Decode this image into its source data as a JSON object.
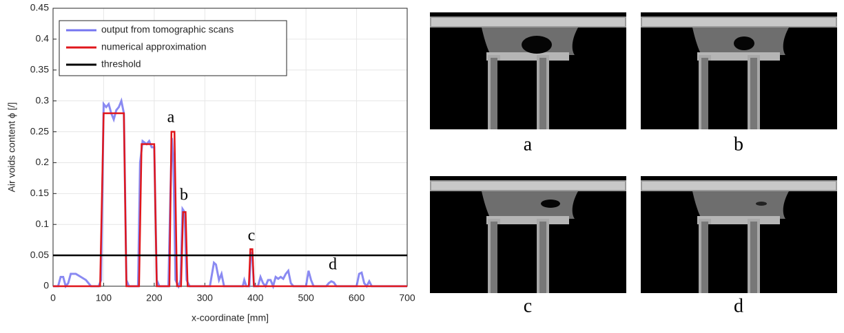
{
  "chart_data": {
    "type": "line",
    "xlabel": "x-coordinate [mm]",
    "ylabel": "Air voids content ϕ [/]",
    "xlim": [
      0,
      700
    ],
    "xticks": [
      0,
      100,
      200,
      300,
      400,
      500,
      600,
      700
    ],
    "ylim": [
      0,
      0.45
    ],
    "yticks": [
      0,
      0.05,
      0.1,
      0.15,
      0.2,
      0.25,
      0.3,
      0.35,
      0.4,
      0.45
    ],
    "grid": true,
    "legend": "upper-left",
    "series": [
      {
        "name": "output from tomographic scans",
        "color": "#7575f0",
        "x": [
          0,
          10,
          15,
          20,
          25,
          30,
          35,
          45,
          55,
          65,
          75,
          90,
          95,
          100,
          105,
          110,
          115,
          120,
          125,
          130,
          135,
          140,
          145,
          150,
          168,
          172,
          177,
          185,
          190,
          195,
          200,
          205,
          210,
          228,
          232,
          235,
          238,
          242,
          248,
          252,
          256,
          260,
          264,
          270,
          310,
          318,
          322,
          328,
          333,
          338,
          375,
          378,
          382,
          388,
          391,
          394,
          397,
          405,
          410,
          415,
          420,
          425,
          430,
          435,
          440,
          445,
          450,
          455,
          460,
          465,
          470,
          475,
          500,
          505,
          510,
          515,
          540,
          545,
          550,
          555,
          560,
          600,
          605,
          610,
          615,
          620,
          625,
          630,
          700
        ],
        "values": [
          0,
          0,
          0.015,
          0.015,
          0,
          0.005,
          0.02,
          0.02,
          0.015,
          0.01,
          0,
          0,
          0.01,
          0.295,
          0.29,
          0.295,
          0.28,
          0.27,
          0.285,
          0.29,
          0.3,
          0.28,
          0.01,
          0,
          0,
          0.2,
          0.235,
          0.23,
          0.235,
          0.225,
          0.225,
          0.01,
          0,
          0,
          0.15,
          0.24,
          0.2,
          0.01,
          0,
          0.01,
          0.125,
          0.12,
          0.01,
          0,
          0,
          0.038,
          0.035,
          0.01,
          0.02,
          0,
          0,
          0.01,
          0,
          0,
          0.055,
          0.05,
          0,
          0,
          0.015,
          0.005,
          0,
          0.01,
          0.01,
          0,
          0.015,
          0.012,
          0.015,
          0.012,
          0.02,
          0.025,
          0.005,
          0,
          0,
          0.025,
          0.01,
          0,
          0,
          0.005,
          0.008,
          0.006,
          0,
          0,
          0.02,
          0.022,
          0.005,
          0,
          0.008,
          0,
          0
        ]
      },
      {
        "name": "numerical approximation",
        "color": "#e0161b",
        "x": [
          0,
          93,
          100,
          140,
          145,
          170,
          175,
          200,
          205,
          230,
          234,
          240,
          245,
          253,
          257,
          262,
          266,
          387,
          390,
          394,
          397,
          700
        ],
        "values": [
          0,
          0,
          0.28,
          0.28,
          0,
          0,
          0.23,
          0.23,
          0,
          0,
          0.25,
          0.25,
          0,
          0,
          0.12,
          0.12,
          0,
          0,
          0.06,
          0.06,
          0,
          0
        ]
      },
      {
        "name": "threshold",
        "color": "#000000",
        "x": [
          0,
          700
        ],
        "values": [
          0.05,
          0.05
        ]
      }
    ],
    "annotations": [
      "a",
      "b",
      "c",
      "d"
    ]
  },
  "images": [
    {
      "caption": "a"
    },
    {
      "caption": "b"
    },
    {
      "caption": "c"
    },
    {
      "caption": "d"
    }
  ]
}
